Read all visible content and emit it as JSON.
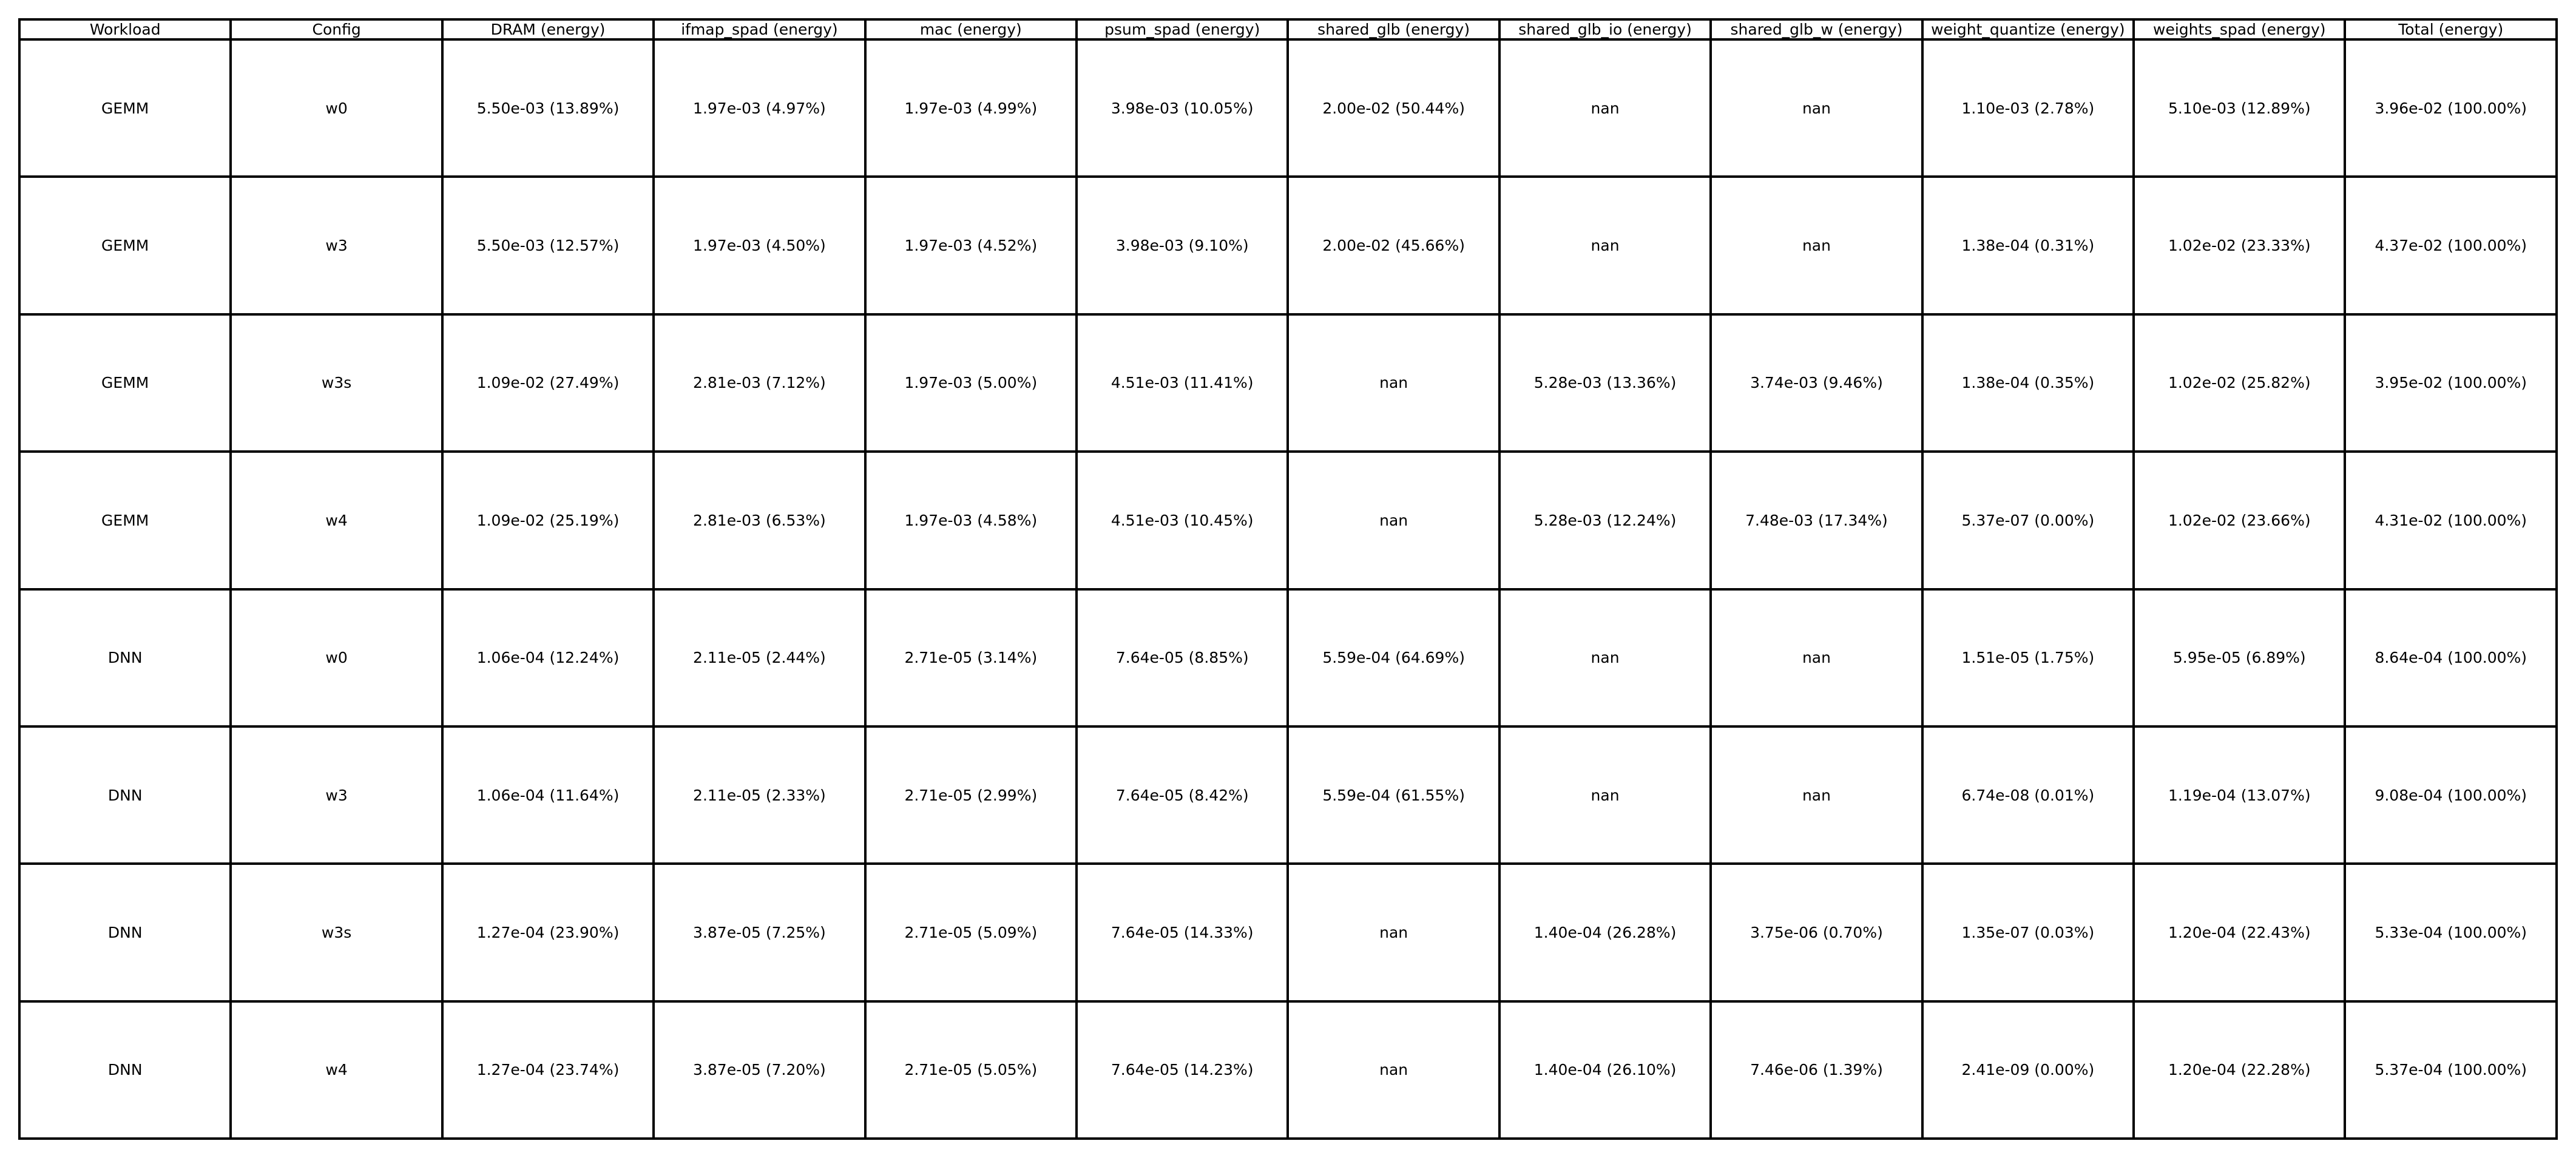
{
  "chart_data": {
    "type": "table",
    "columns": [
      "Workload",
      "Config",
      "DRAM (energy)",
      "ifmap_spad (energy)",
      "mac (energy)",
      "psum_spad (energy)",
      "shared_glb (energy)",
      "shared_glb_io (energy)",
      "shared_glb_w (energy)",
      "weight_quantize (energy)",
      "weights_spad (energy)",
      "Total (energy)"
    ],
    "rows": [
      [
        "GEMM",
        "w0",
        "5.50e-03 (13.89%)",
        "1.97e-03 (4.97%)",
        "1.97e-03 (4.99%)",
        "3.98e-03 (10.05%)",
        "2.00e-02 (50.44%)",
        "nan",
        "nan",
        "1.10e-03 (2.78%)",
        "5.10e-03 (12.89%)",
        "3.96e-02 (100.00%)"
      ],
      [
        "GEMM",
        "w3",
        "5.50e-03 (12.57%)",
        "1.97e-03 (4.50%)",
        "1.97e-03 (4.52%)",
        "3.98e-03 (9.10%)",
        "2.00e-02 (45.66%)",
        "nan",
        "nan",
        "1.38e-04 (0.31%)",
        "1.02e-02 (23.33%)",
        "4.37e-02 (100.00%)"
      ],
      [
        "GEMM",
        "w3s",
        "1.09e-02 (27.49%)",
        "2.81e-03 (7.12%)",
        "1.97e-03 (5.00%)",
        "4.51e-03 (11.41%)",
        "nan",
        "5.28e-03 (13.36%)",
        "3.74e-03 (9.46%)",
        "1.38e-04 (0.35%)",
        "1.02e-02 (25.82%)",
        "3.95e-02 (100.00%)"
      ],
      [
        "GEMM",
        "w4",
        "1.09e-02 (25.19%)",
        "2.81e-03 (6.53%)",
        "1.97e-03 (4.58%)",
        "4.51e-03 (10.45%)",
        "nan",
        "5.28e-03 (12.24%)",
        "7.48e-03 (17.34%)",
        "5.37e-07 (0.00%)",
        "1.02e-02 (23.66%)",
        "4.31e-02 (100.00%)"
      ],
      [
        "DNN",
        "w0",
        "1.06e-04 (12.24%)",
        "2.11e-05 (2.44%)",
        "2.71e-05 (3.14%)",
        "7.64e-05 (8.85%)",
        "5.59e-04 (64.69%)",
        "nan",
        "nan",
        "1.51e-05 (1.75%)",
        "5.95e-05 (6.89%)",
        "8.64e-04 (100.00%)"
      ],
      [
        "DNN",
        "w3",
        "1.06e-04 (11.64%)",
        "2.11e-05 (2.33%)",
        "2.71e-05 (2.99%)",
        "7.64e-05 (8.42%)",
        "5.59e-04 (61.55%)",
        "nan",
        "nan",
        "6.74e-08 (0.01%)",
        "1.19e-04 (13.07%)",
        "9.08e-04 (100.00%)"
      ],
      [
        "DNN",
        "w3s",
        "1.27e-04 (23.90%)",
        "3.87e-05 (7.25%)",
        "2.71e-05 (5.09%)",
        "7.64e-05 (14.33%)",
        "nan",
        "1.40e-04 (26.28%)",
        "3.75e-06 (0.70%)",
        "1.35e-07 (0.03%)",
        "1.20e-04 (22.43%)",
        "5.33e-04 (100.00%)"
      ],
      [
        "DNN",
        "w4",
        "1.27e-04 (23.74%)",
        "3.87e-05 (7.20%)",
        "2.71e-05 (5.05%)",
        "7.64e-05 (14.23%)",
        "nan",
        "1.40e-04 (26.10%)",
        "7.46e-06 (1.39%)",
        "2.41e-09 (0.00%)",
        "1.20e-04 (22.28%)",
        "5.37e-04 (100.00%)"
      ]
    ]
  },
  "colors": {
    "border": "#000000",
    "text": "#000000",
    "background": "#ffffff"
  }
}
